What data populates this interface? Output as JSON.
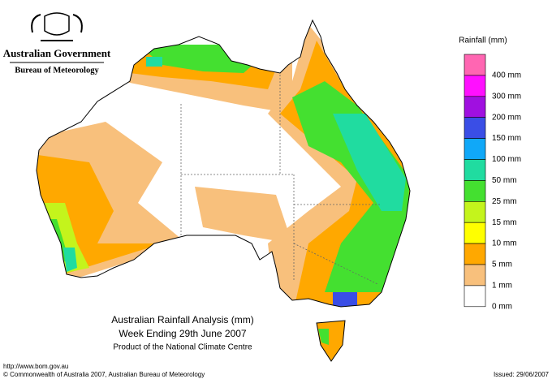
{
  "header": {
    "title": "Australian Government",
    "subtitle": "Bureau of Meteorology"
  },
  "legend": {
    "title": "Rainfall (mm)",
    "bins": [
      {
        "color": "#ff66b2"
      },
      {
        "color": "#ff10ff",
        "label": "400 mm"
      },
      {
        "color": "#a010e0",
        "label": "300 mm"
      },
      {
        "color": "#3a4ee6",
        "label": "200 mm"
      },
      {
        "color": "#10a8f8",
        "label": "150 mm"
      },
      {
        "color": "#20dca0",
        "label": "100 mm"
      },
      {
        "color": "#44e030",
        "label": "50 mm"
      },
      {
        "color": "#c4f41c",
        "label": "25 mm"
      },
      {
        "color": "#ffff00",
        "label": "15 mm"
      },
      {
        "color": "#ffa800",
        "label": "10 mm"
      },
      {
        "color": "#f8c07c",
        "label": "5 mm"
      },
      {
        "color": "#ffffff",
        "label": "1 mm"
      }
    ],
    "bottom_label": "0 mm"
  },
  "map": {
    "title": "Australian Rainfall Analysis (mm)",
    "subtitle": "Week Ending 29th June 2007",
    "credit": "Product of the National Climate Centre"
  },
  "footer": {
    "url": "http://www.bom.gov.au",
    "copyright": "© Commonwealth of Australia 2007, Australian Bureau of Meteorology",
    "issued": "Issued: 29/06/2007"
  }
}
